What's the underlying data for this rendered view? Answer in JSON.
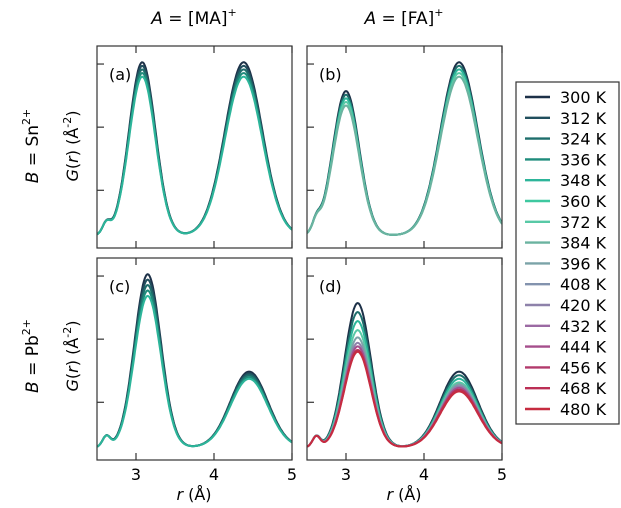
{
  "figure": {
    "column_titles": [
      {
        "italic": "A",
        "text": " = [MA]",
        "sup": "+"
      },
      {
        "italic": "A",
        "text": " = [FA]",
        "sup": "+"
      }
    ],
    "row_titles": [
      {
        "italic": "B",
        "text": " = Sn",
        "sup": "2+"
      },
      {
        "italic": "B",
        "text": " = Pb",
        "sup": "2+"
      }
    ],
    "y_axis_label": {
      "prefix": "G",
      "mid": "(",
      "italic": "r",
      "rest": ") (Å",
      "sup": "-2",
      "end": ")"
    },
    "x_axis_label": {
      "italic": "r",
      "rest": " (Å)"
    },
    "x_ticks": [
      "3",
      "4",
      "5"
    ],
    "legend_colors": {
      "300 K": "#1d3148",
      "312 K": "#214f5e",
      "324 K": "#1e6e6c",
      "336 K": "#1f8c7c",
      "348 K": "#2db59a",
      "360 K": "#3ec8a0",
      "372 K": "#58c9a6",
      "384 K": "#6bb3a0",
      "396 K": "#7ba3a8",
      "408 K": "#8393ae",
      "420 K": "#8e82aa",
      "432 K": "#9b6aa3",
      "444 K": "#a54e8c",
      "456 K": "#b23a6c",
      "468 K": "#bb2f55",
      "480 K": "#c62b40"
    }
  },
  "chart_data": [
    {
      "type": "line",
      "panel_label": "(a)",
      "column": "A = [MA]+",
      "row": "B = Sn2+",
      "xlim": [
        2.5,
        5.0
      ],
      "x_ticks": [
        3,
        4,
        5
      ],
      "xlabel": "",
      "ylabel": "G(r) (Å-2)",
      "y_scale_note": "unlabeled ticks",
      "series": [
        {
          "name": "300 K",
          "peaks": [
            {
              "x": 3.08,
              "y": 0.96
            },
            {
              "x": 4.38,
              "y": 0.96
            }
          ]
        },
        {
          "name": "312 K",
          "peaks": [
            {
              "x": 3.08,
              "y": 0.94
            },
            {
              "x": 4.38,
              "y": 0.94
            }
          ]
        },
        {
          "name": "324 K",
          "peaks": [
            {
              "x": 3.08,
              "y": 0.92
            },
            {
              "x": 4.38,
              "y": 0.92
            }
          ]
        },
        {
          "name": "336 K",
          "peaks": [
            {
              "x": 3.08,
              "y": 0.9
            },
            {
              "x": 4.38,
              "y": 0.9
            }
          ]
        },
        {
          "name": "348 K",
          "peaks": [
            {
              "x": 3.08,
              "y": 0.88
            },
            {
              "x": 4.38,
              "y": 0.88
            }
          ]
        }
      ]
    },
    {
      "type": "line",
      "panel_label": "(b)",
      "column": "A = [FA]+",
      "row": "B = Sn2+",
      "xlim": [
        2.5,
        5.0
      ],
      "x_ticks": [
        3,
        4,
        5
      ],
      "xlabel": "",
      "ylabel": "",
      "series": [
        {
          "name": "300 K",
          "peaks": [
            {
              "x": 3.0,
              "y": 0.8
            },
            {
              "x": 4.45,
              "y": 0.96
            }
          ]
        },
        {
          "name": "324 K",
          "peaks": [
            {
              "x": 3.0,
              "y": 0.78
            },
            {
              "x": 4.45,
              "y": 0.94
            }
          ]
        },
        {
          "name": "348 K",
          "peaks": [
            {
              "x": 3.0,
              "y": 0.76
            },
            {
              "x": 4.45,
              "y": 0.92
            }
          ]
        },
        {
          "name": "372 K",
          "peaks": [
            {
              "x": 3.0,
              "y": 0.74
            },
            {
              "x": 4.45,
              "y": 0.9
            }
          ]
        },
        {
          "name": "384 K",
          "peaks": [
            {
              "x": 3.0,
              "y": 0.72
            },
            {
              "x": 4.45,
              "y": 0.88
            }
          ]
        }
      ]
    },
    {
      "type": "line",
      "panel_label": "(c)",
      "column": "A = [MA]+",
      "row": "B = Pb2+",
      "xlim": [
        2.5,
        5.0
      ],
      "x_ticks": [
        3,
        4,
        5
      ],
      "xlabel": "r (Å)",
      "ylabel": "G(r) (Å-2)",
      "series": [
        {
          "name": "300 K",
          "peaks": [
            {
              "x": 3.15,
              "y": 0.96
            },
            {
              "x": 4.45,
              "y": 0.42
            }
          ]
        },
        {
          "name": "312 K",
          "peaks": [
            {
              "x": 3.15,
              "y": 0.93
            },
            {
              "x": 4.45,
              "y": 0.41
            }
          ]
        },
        {
          "name": "324 K",
          "peaks": [
            {
              "x": 3.15,
              "y": 0.9
            },
            {
              "x": 4.45,
              "y": 0.4
            }
          ]
        },
        {
          "name": "336 K",
          "peaks": [
            {
              "x": 3.15,
              "y": 0.87
            },
            {
              "x": 4.45,
              "y": 0.39
            }
          ]
        },
        {
          "name": "348 K",
          "peaks": [
            {
              "x": 3.15,
              "y": 0.84
            },
            {
              "x": 4.45,
              "y": 0.38
            }
          ]
        }
      ]
    },
    {
      "type": "line",
      "panel_label": "(d)",
      "column": "A = [FA]+",
      "row": "B = Pb2+",
      "xlim": [
        2.5,
        5.0
      ],
      "x_ticks": [
        3,
        4,
        5
      ],
      "xlabel": "r (Å)",
      "ylabel": "",
      "series": [
        {
          "name": "300 K",
          "peaks": [
            {
              "x": 3.15,
              "y": 0.8
            },
            {
              "x": 4.45,
              "y": 0.42
            }
          ]
        },
        {
          "name": "324 K",
          "peaks": [
            {
              "x": 3.15,
              "y": 0.75
            },
            {
              "x": 4.45,
              "y": 0.4
            }
          ]
        },
        {
          "name": "348 K",
          "peaks": [
            {
              "x": 3.15,
              "y": 0.7
            },
            {
              "x": 4.45,
              "y": 0.38
            }
          ]
        },
        {
          "name": "372 K",
          "peaks": [
            {
              "x": 3.15,
              "y": 0.65
            },
            {
              "x": 4.45,
              "y": 0.36
            }
          ]
        },
        {
          "name": "396 K",
          "peaks": [
            {
              "x": 3.15,
              "y": 0.61
            },
            {
              "x": 4.45,
              "y": 0.35
            }
          ]
        },
        {
          "name": "420 K",
          "peaks": [
            {
              "x": 3.15,
              "y": 0.58
            },
            {
              "x": 4.45,
              "y": 0.34
            }
          ]
        },
        {
          "name": "444 K",
          "peaks": [
            {
              "x": 3.15,
              "y": 0.56
            },
            {
              "x": 4.45,
              "y": 0.33
            }
          ]
        },
        {
          "name": "468 K",
          "peaks": [
            {
              "x": 3.15,
              "y": 0.54
            },
            {
              "x": 4.45,
              "y": 0.32
            }
          ]
        },
        {
          "name": "480 K",
          "peaks": [
            {
              "x": 3.15,
              "y": 0.53
            },
            {
              "x": 4.45,
              "y": 0.31
            }
          ]
        }
      ]
    }
  ],
  "legend": {
    "entries": [
      "300 K",
      "312 K",
      "324 K",
      "336 K",
      "348 K",
      "360 K",
      "372 K",
      "384 K",
      "396 K",
      "408 K",
      "420 K",
      "432 K",
      "444 K",
      "456 K",
      "468 K",
      "480 K"
    ]
  }
}
